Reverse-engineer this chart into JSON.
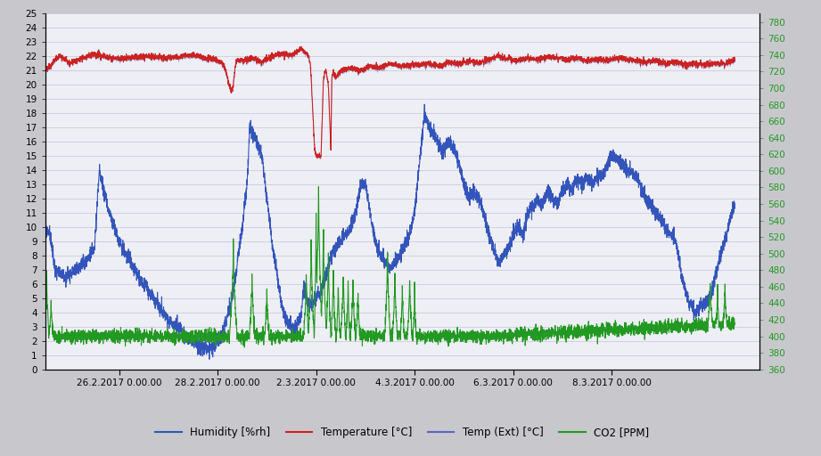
{
  "xlim_days": [
    0,
    14.5
  ],
  "left_ylim": [
    0,
    25
  ],
  "right_ylim": [
    360,
    790
  ],
  "left_yticks": [
    0,
    1,
    2,
    3,
    4,
    5,
    6,
    7,
    8,
    9,
    10,
    11,
    12,
    13,
    14,
    15,
    16,
    17,
    18,
    19,
    20,
    21,
    22,
    23,
    24,
    25
  ],
  "right_yticks": [
    360,
    380,
    400,
    420,
    440,
    460,
    480,
    500,
    520,
    540,
    560,
    580,
    600,
    620,
    640,
    660,
    680,
    700,
    720,
    740,
    760,
    780
  ],
  "xtick_labels": [
    "26.2.2017 0.00.00",
    "28.2.2017 0.00.00",
    "2.3.2017 0.00.00",
    "4.3.2017 0.00.00",
    "6.3.2017 0.00.00",
    "8.3.2017 0.00.00"
  ],
  "xtick_positions": [
    1.5,
    3.5,
    5.5,
    7.5,
    9.5,
    11.5
  ],
  "humidity_color": "#3355bb",
  "temperature_color": "#cc2222",
  "temp_ext_color": "#5566cc",
  "co2_color": "#229922",
  "fig_bg": "#c8c8cc",
  "plot_bg": "#eeeef5",
  "grid_color": "#ccccdd"
}
